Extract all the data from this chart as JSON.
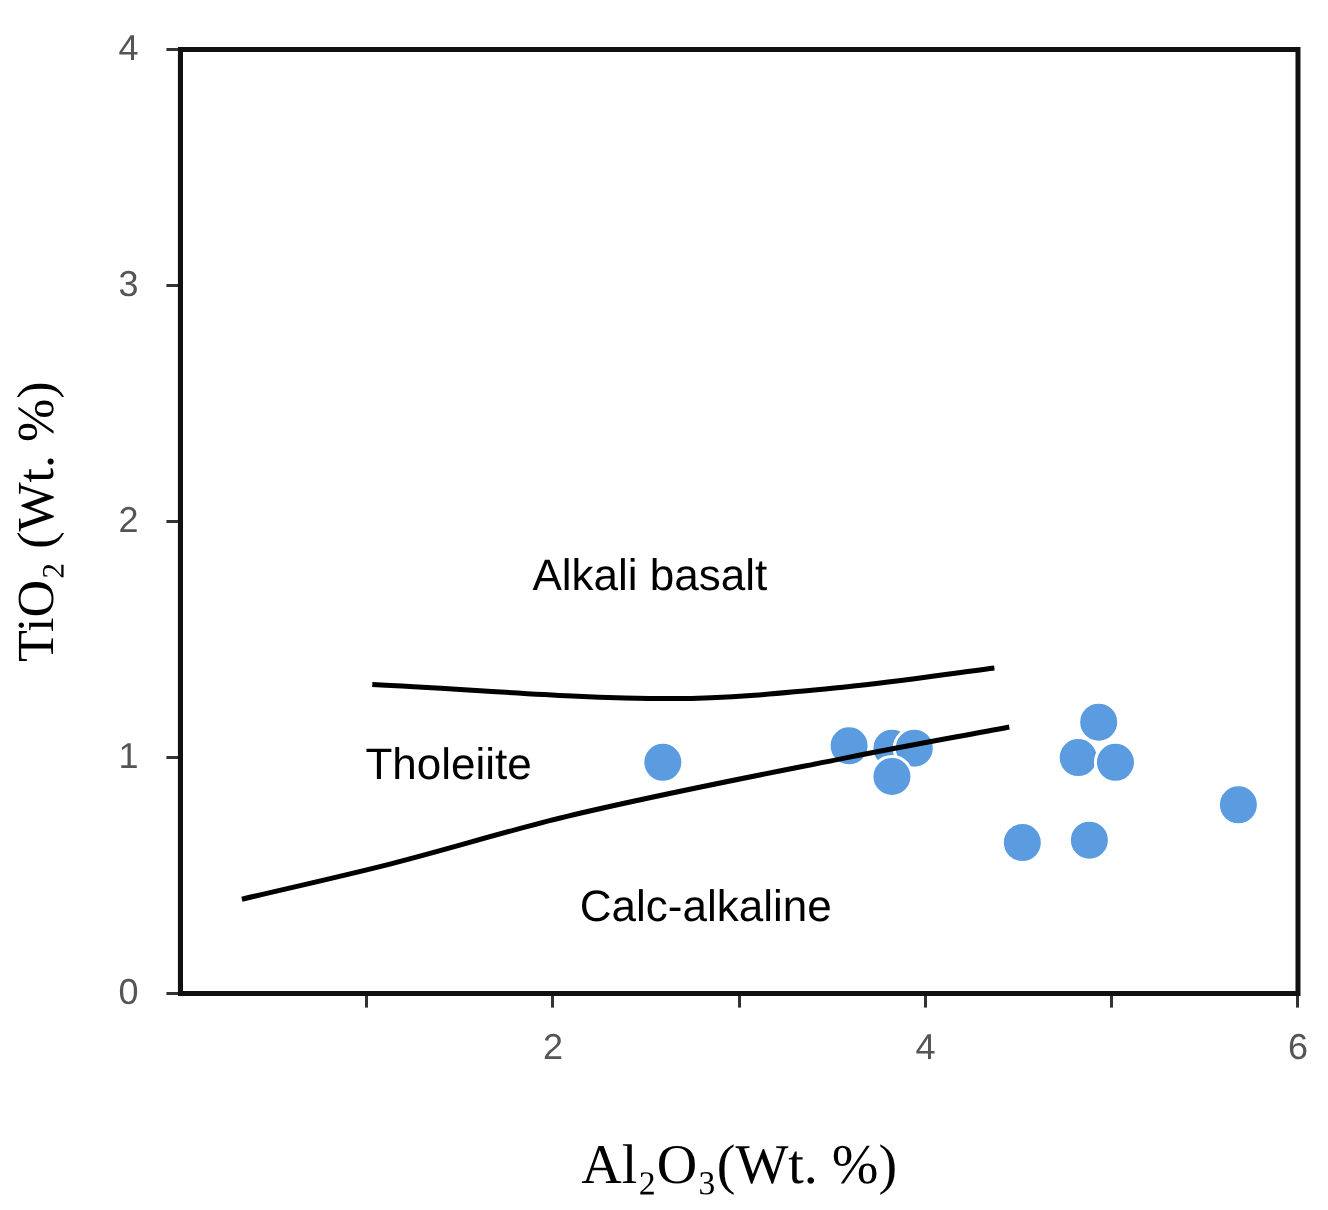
{
  "chart_data": {
    "type": "scatter",
    "xlabel": "Al₂O₃(Wt. %)",
    "ylabel": "TiO₂ (Wt. %)",
    "xlim": [
      0,
      6
    ],
    "xticks": [
      {
        "value": 1,
        "label": null
      },
      2,
      {
        "value": 3,
        "label": null
      },
      4,
      {
        "value": 5,
        "label": null
      },
      6
    ],
    "ylim": [
      0,
      4
    ],
    "yticks": [
      0,
      1,
      2,
      3,
      4
    ],
    "legend": false,
    "marker": "circle",
    "series": [
      {
        "color": "#5b9be0",
        "x": [
          2.59,
          3.59,
          3.82,
          3.94,
          3.82,
          4.93,
          4.82,
          5.02,
          4.52,
          4.88,
          5.68
        ],
        "values": [
          0.98,
          1.05,
          1.04,
          1.04,
          0.92,
          1.15,
          1.0,
          0.98,
          0.64,
          0.65,
          0.8
        ]
      },
      {
        "type": "line",
        "color": "#000000",
        "marker": "none",
        "x": [
          1.03,
          2.64,
          3.58,
          4.37
        ],
        "values": [
          1.31,
          1.25,
          1.3,
          1.38
        ]
      },
      {
        "type": "line",
        "color": "#000000",
        "marker": "none",
        "x": [
          0.33,
          1.13,
          2.07,
          3.58,
          4.45
        ],
        "values": [
          0.4,
          0.55,
          0.75,
          1.0,
          1.13
        ]
      }
    ],
    "annotations": [
      "Alkali basalt",
      "Tholeiite",
      "Calc-alkaline"
    ]
  }
}
